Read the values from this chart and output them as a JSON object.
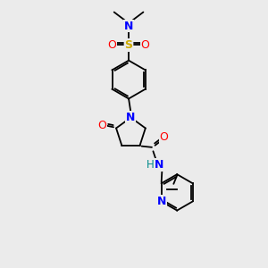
{
  "background_color": "#ebebeb",
  "figsize": [
    3.0,
    3.0
  ],
  "dpi": 100,
  "colors": {
    "S": "#ccaa00",
    "O": "#ff0000",
    "N": "#0000ff",
    "N_teal": "#008b8b",
    "C": "#000000",
    "bond": "#000000"
  },
  "lw": 1.3,
  "dbo": 0.055
}
